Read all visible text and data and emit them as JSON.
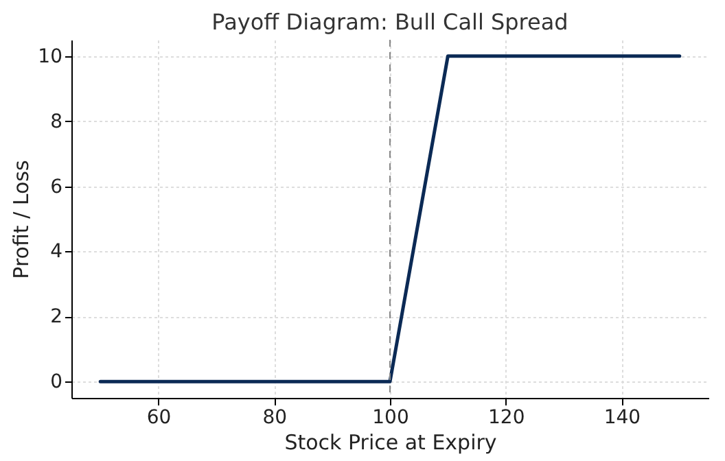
{
  "chart_data": {
    "type": "line",
    "title": "Payoff Diagram: Bull Call Spread",
    "xlabel": "Stock Price at Expiry",
    "ylabel": "Profit / Loss",
    "x": [
      50,
      100,
      110,
      150
    ],
    "series": [
      {
        "color": "#0b2a55",
        "values": [
          0,
          0,
          10,
          10
        ]
      }
    ],
    "xlim": [
      45,
      155
    ],
    "xticks": [
      60,
      80,
      100,
      120,
      140
    ],
    "ylim": [
      -0.5,
      10.5
    ],
    "yticks": [
      0,
      2,
      4,
      6,
      8,
      10
    ],
    "ref_lines": [
      {
        "axis": "x",
        "value": 100,
        "color": "#888888",
        "line_style": "dashed"
      }
    ],
    "grid": true,
    "marker": "none",
    "line_style": "solid"
  }
}
